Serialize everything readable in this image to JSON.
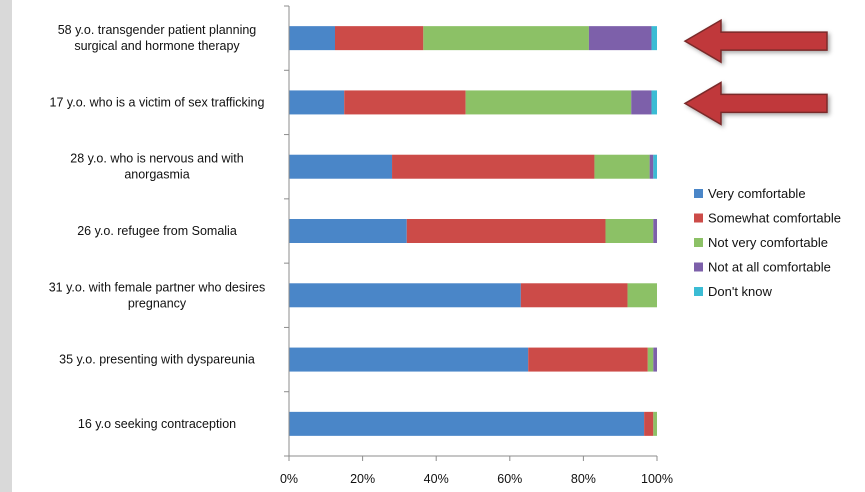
{
  "chart_data": {
    "type": "bar",
    "orientation": "horizontal",
    "stacked": true,
    "title": "",
    "xlabel": "",
    "ylabel": "",
    "xlim": [
      0,
      100
    ],
    "x_ticks": [
      "0%",
      "20%",
      "40%",
      "60%",
      "80%",
      "100%"
    ],
    "categories": [
      [
        "58 y.o. transgender patient planning",
        "surgical and hormone therapy"
      ],
      [
        "17 y.o. who is a victim of sex trafficking"
      ],
      [
        "28 y.o. who is nervous and with",
        "anorgasmia"
      ],
      [
        "26 y.o. refugee from Somalia"
      ],
      [
        "31 y.o. with female partner who desires",
        "pregnancy"
      ],
      [
        "35 y.o. presenting with dyspareunia"
      ],
      [
        "16 y.o seeking contraception"
      ]
    ],
    "series": [
      {
        "name": "Very comfortable",
        "color": "#4a86c8",
        "values": [
          12.5,
          15,
          28,
          32,
          63,
          65,
          96.5
        ]
      },
      {
        "name": "Somewhat comfortable",
        "color": "#cc4b48",
        "values": [
          24,
          33,
          55,
          54,
          29,
          32.5,
          2.5
        ]
      },
      {
        "name": "Not very comfortable",
        "color": "#8cc166",
        "values": [
          45,
          45,
          15,
          13,
          8,
          1.5,
          1
        ]
      },
      {
        "name": "Not at all comfortable",
        "color": "#7d60aa",
        "values": [
          17,
          5.5,
          1,
          1,
          0,
          1,
          0
        ]
      },
      {
        "name": "Don't know",
        "color": "#3bbcd4",
        "values": [
          1.5,
          1.5,
          1,
          0,
          0,
          0,
          0
        ]
      }
    ],
    "legend_position": "right",
    "grid": false,
    "annotations": [
      {
        "type": "arrow",
        "points_to": "58 y.o. transgender patient planning surgical and hormone therapy",
        "color": "#c0393a"
      },
      {
        "type": "arrow",
        "points_to": "17 y.o. who is a victim of sex trafficking",
        "color": "#c0393a"
      }
    ]
  }
}
